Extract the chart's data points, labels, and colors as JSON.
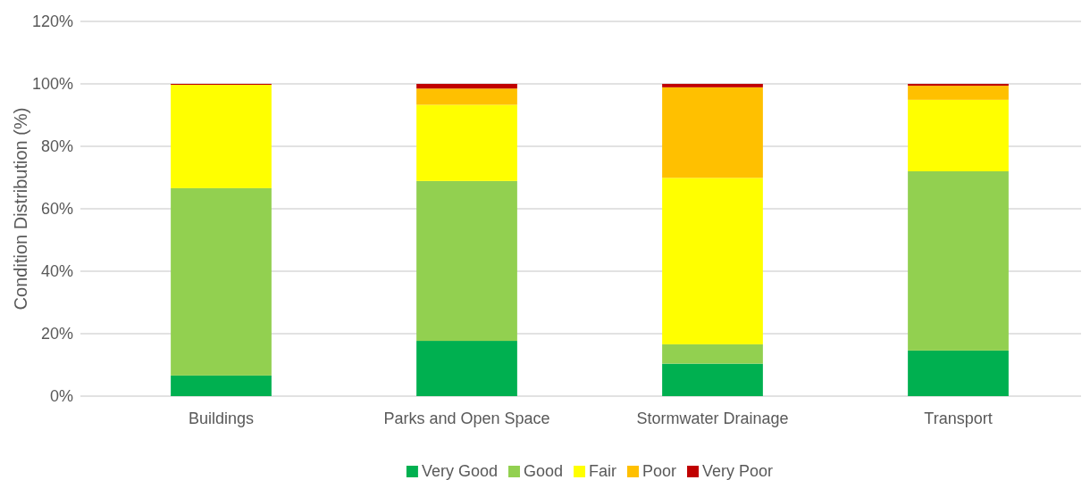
{
  "chart_data": {
    "type": "bar",
    "stacked": true,
    "ylabel": "Condition Distribution (%)",
    "categories": [
      "Buildings",
      "Parks and Open Space",
      "Stormwater Drainage",
      "Transport"
    ],
    "series": [
      {
        "name": "Very Good",
        "color": "#00b050",
        "values": [
          6.6,
          17.7,
          10.4,
          14.6
        ]
      },
      {
        "name": "Good",
        "color": "#92d050",
        "values": [
          60,
          51.2,
          6.2,
          57.4
        ]
      },
      {
        "name": "Fair",
        "color": "#ffff00",
        "values": [
          33.1,
          24.4,
          53.3,
          22.9
        ]
      },
      {
        "name": "Poor",
        "color": "#ffc000",
        "values": [
          0,
          5.2,
          29,
          4.5
        ]
      },
      {
        "name": "Very Poor",
        "color": "#c00000",
        "values": [
          0.3,
          1.5,
          1.1,
          0.6
        ]
      }
    ],
    "ylim": [
      0,
      120
    ],
    "yticks": [
      {
        "value": 0,
        "label": "0%"
      },
      {
        "value": 20,
        "label": "20%"
      },
      {
        "value": 40,
        "label": "40%"
      },
      {
        "value": 60,
        "label": "60%"
      },
      {
        "value": 80,
        "label": "80%"
      },
      {
        "value": 100,
        "label": "100%"
      },
      {
        "value": 120,
        "label": "120%"
      }
    ],
    "grid": "y",
    "legend": "bottom"
  }
}
